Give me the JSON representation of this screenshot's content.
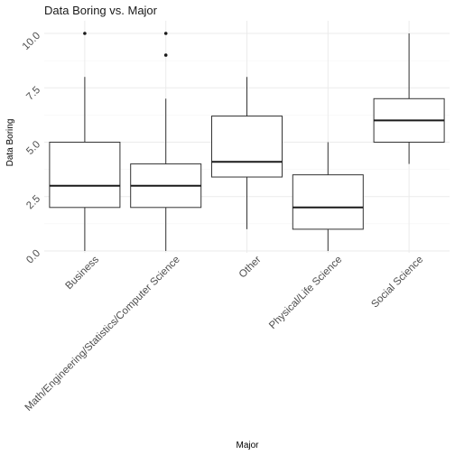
{
  "chart_data": {
    "type": "boxplot",
    "title": "Data Boring vs. Major",
    "xlabel": "Major",
    "ylabel": "Data Boring",
    "ylim": [
      0,
      10.5
    ],
    "y_ticks": [
      0,
      2.5,
      5,
      7.5,
      10
    ],
    "y_tick_labels": [
      "0.0",
      "2.5",
      "5.0",
      "7.5",
      "10.0"
    ],
    "grid": true,
    "categories": [
      "Business",
      "Math/Engineering/Statistics/Computer Science",
      "Other",
      "Physical/Life Science",
      "Social Science"
    ],
    "boxes": [
      {
        "category": "Business",
        "min": 0,
        "q1": 2,
        "median": 3,
        "q3": 5,
        "max": 8,
        "outliers": [
          10
        ]
      },
      {
        "category": "Math/Engineering/Statistics/Computer Science",
        "min": 0,
        "q1": 2,
        "median": 3,
        "q3": 4,
        "max": 7,
        "outliers": [
          9,
          10
        ]
      },
      {
        "category": "Other",
        "min": 1,
        "q1": 3.4,
        "median": 4.1,
        "q3": 6.2,
        "max": 8,
        "outliers": []
      },
      {
        "category": "Physical/Life Science",
        "min": 0,
        "q1": 1,
        "median": 2,
        "q3": 3.5,
        "max": 5,
        "outliers": []
      },
      {
        "category": "Social Science",
        "min": 4,
        "q1": 5,
        "median": 6,
        "q3": 7,
        "max": 10,
        "outliers": []
      }
    ],
    "colors": {
      "box_line": "#333333",
      "median": "#1a1a1a",
      "grid": "#ebebeb",
      "background": "#ffffff"
    }
  }
}
